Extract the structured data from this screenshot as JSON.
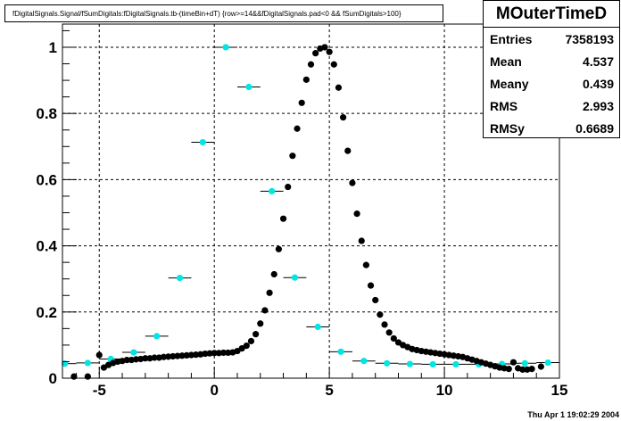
{
  "title": "fDigitalSignals.Signal/fSumDigitals:fDigitalSignals.tb-(timeBin+dT) {row>=14&&fDigitalSignals.pad<0 && fSumDigitals>100}",
  "stats": {
    "name": "MOuterTimeD",
    "rows": [
      {
        "label": "Entries",
        "value": "7358193"
      },
      {
        "label": "Mean",
        "value": "4.537"
      },
      {
        "label": "Meany",
        "value": "0.439"
      },
      {
        "label": "RMS",
        "value": "2.993"
      },
      {
        "label": "RMSy",
        "value": "0.6689"
      }
    ]
  },
  "timestamp": "Thu Apr  1 19:02:29 2004",
  "colors": {
    "black_series": "#000000",
    "cyan_series": "#00e5e5",
    "grid": "#000000"
  },
  "chart_data": {
    "type": "scatter",
    "xlim": [
      -6.6,
      15
    ],
    "ylim": [
      0,
      1.07
    ],
    "xticks": [
      "-5",
      "0",
      "5",
      "10",
      "15"
    ],
    "xtick_values": [
      -5,
      0,
      5,
      10,
      15
    ],
    "yticks": [
      "0",
      "0.2",
      "0.4",
      "0.6",
      "0.8",
      "1"
    ],
    "ytick_values": [
      0,
      0.2,
      0.4,
      0.6,
      0.8,
      1
    ],
    "grid": true,
    "series": [
      {
        "color": "black",
        "points": [
          [
            -6.1,
            0.005
          ],
          [
            -5.5,
            0.005
          ],
          [
            -5.0,
            0.07
          ],
          [
            -4.8,
            0.032
          ],
          [
            -4.6,
            0.04
          ],
          [
            -4.4,
            0.046
          ],
          [
            -4.2,
            0.05
          ],
          [
            -4.0,
            0.052
          ],
          [
            -3.8,
            0.055
          ],
          [
            -3.6,
            0.055
          ],
          [
            -3.4,
            0.057
          ],
          [
            -3.2,
            0.058
          ],
          [
            -3.0,
            0.06
          ],
          [
            -2.8,
            0.06
          ],
          [
            -2.6,
            0.062
          ],
          [
            -2.4,
            0.062
          ],
          [
            -2.2,
            0.064
          ],
          [
            -2.0,
            0.065
          ],
          [
            -1.8,
            0.066
          ],
          [
            -1.6,
            0.067
          ],
          [
            -1.4,
            0.068
          ],
          [
            -1.2,
            0.069
          ],
          [
            -1.0,
            0.07
          ],
          [
            -0.8,
            0.071
          ],
          [
            -0.6,
            0.072
          ],
          [
            -0.4,
            0.074
          ],
          [
            -0.2,
            0.075
          ],
          [
            0.0,
            0.076
          ],
          [
            0.2,
            0.076
          ],
          [
            0.4,
            0.077
          ],
          [
            0.6,
            0.077
          ],
          [
            0.8,
            0.078
          ],
          [
            1.0,
            0.082
          ],
          [
            1.2,
            0.09
          ],
          [
            1.4,
            0.098
          ],
          [
            1.6,
            0.112
          ],
          [
            1.8,
            0.133
          ],
          [
            2.0,
            0.165
          ],
          [
            2.2,
            0.205
          ],
          [
            2.4,
            0.258
          ],
          [
            2.6,
            0.314
          ],
          [
            2.8,
            0.39
          ],
          [
            3.0,
            0.482
          ],
          [
            3.2,
            0.578
          ],
          [
            3.4,
            0.672
          ],
          [
            3.6,
            0.754
          ],
          [
            3.8,
            0.832
          ],
          [
            4.0,
            0.902
          ],
          [
            4.2,
            0.948
          ],
          [
            4.4,
            0.982
          ],
          [
            4.6,
            0.996
          ],
          [
            4.8,
            1.0
          ],
          [
            5.0,
            0.986
          ],
          [
            5.2,
            0.948
          ],
          [
            5.4,
            0.878
          ],
          [
            5.6,
            0.788
          ],
          [
            5.8,
            0.687
          ],
          [
            6.0,
            0.59
          ],
          [
            6.2,
            0.497
          ],
          [
            6.4,
            0.415
          ],
          [
            6.6,
            0.342
          ],
          [
            6.8,
            0.28
          ],
          [
            7.0,
            0.236
          ],
          [
            7.2,
            0.192
          ],
          [
            7.4,
            0.162
          ],
          [
            7.6,
            0.138
          ],
          [
            7.8,
            0.12
          ],
          [
            8.0,
            0.108
          ],
          [
            8.2,
            0.1
          ],
          [
            8.4,
            0.094
          ],
          [
            8.6,
            0.088
          ],
          [
            8.8,
            0.085
          ],
          [
            9.0,
            0.082
          ],
          [
            9.2,
            0.08
          ],
          [
            9.4,
            0.078
          ],
          [
            9.6,
            0.076
          ],
          [
            9.8,
            0.074
          ],
          [
            10.0,
            0.072
          ],
          [
            10.2,
            0.07
          ],
          [
            10.4,
            0.068
          ],
          [
            10.6,
            0.066
          ],
          [
            10.8,
            0.064
          ],
          [
            11.0,
            0.06
          ],
          [
            11.2,
            0.056
          ],
          [
            11.4,
            0.052
          ],
          [
            11.6,
            0.048
          ],
          [
            11.8,
            0.044
          ],
          [
            12.0,
            0.04
          ],
          [
            12.2,
            0.036
          ],
          [
            12.4,
            0.032
          ],
          [
            12.6,
            0.03
          ],
          [
            12.8,
            0.028
          ],
          [
            13.0,
            0.048
          ],
          [
            13.2,
            0.03
          ],
          [
            13.4,
            0.026
          ],
          [
            13.6,
            0.026
          ],
          [
            13.8,
            0.028
          ],
          [
            14.2,
            0.035
          ]
        ]
      },
      {
        "color": "cyan",
        "xerr": 0.5,
        "points": [
          [
            -6.5,
            0.044
          ],
          [
            -5.5,
            0.046
          ],
          [
            -4.5,
            0.058
          ],
          [
            -3.5,
            0.078
          ],
          [
            -2.5,
            0.127
          ],
          [
            -1.5,
            0.303
          ],
          [
            -0.5,
            0.713
          ],
          [
            0.5,
            1.0
          ],
          [
            1.5,
            0.88
          ],
          [
            2.5,
            0.565
          ],
          [
            3.5,
            0.304
          ],
          [
            4.5,
            0.155
          ],
          [
            5.5,
            0.08
          ],
          [
            6.5,
            0.052
          ],
          [
            7.5,
            0.045
          ],
          [
            8.5,
            0.043
          ],
          [
            9.5,
            0.042
          ],
          [
            10.5,
            0.042
          ],
          [
            11.5,
            0.042
          ],
          [
            12.5,
            0.043
          ],
          [
            13.5,
            0.045
          ],
          [
            14.5,
            0.047
          ]
        ]
      }
    ]
  }
}
